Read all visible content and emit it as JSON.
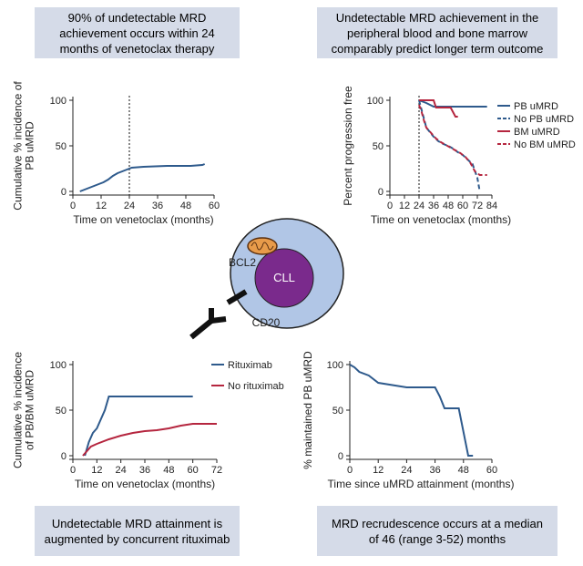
{
  "captions": {
    "top_left": "90% of undetectable MRD achievement occurs within 24 months of venetoclax therapy",
    "top_right": "Undetectable MRD achievement in the peripheral blood and bone marrow comparably predict longer term outcome",
    "bottom_left": "Undetectable MRD attainment is augmented by concurrent rituximab",
    "bottom_right": "MRD recrudescence occurs at a median of 46 (range 3-52) months"
  },
  "diagram": {
    "bcl2": "BCL2",
    "cll": "CLL",
    "cd20": "CD20"
  },
  "chart_data": [
    {
      "type": "line",
      "ylabel": [
        "Cumulative % incidence of",
        "PB uMRD"
      ],
      "xlabel": "Time on venetoclax (months)",
      "xlim": [
        0,
        60
      ],
      "xticks": [
        0,
        12,
        24,
        36,
        48,
        60
      ],
      "ylim": [
        0,
        100
      ],
      "yticks": [
        0,
        50,
        100
      ],
      "reference_x": 24,
      "series": [
        {
          "color": "#2e5a8c",
          "style": "solid",
          "x": [
            3,
            5,
            7,
            9,
            11,
            13,
            15,
            17,
            19,
            21,
            23,
            25,
            30,
            40,
            50,
            55,
            56
          ],
          "values": [
            0,
            2,
            4,
            6,
            8,
            10,
            13,
            17,
            20,
            22,
            24,
            26,
            27,
            28,
            28,
            29,
            30
          ]
        }
      ]
    },
    {
      "type": "line",
      "ylabel": [
        "Percent progression free"
      ],
      "xlabel": "Time on venetoclax (months)",
      "xlim": [
        0,
        84
      ],
      "xticks": [
        0,
        12,
        24,
        36,
        48,
        60,
        72,
        84
      ],
      "ylim": [
        0,
        100
      ],
      "yticks": [
        0,
        50,
        100
      ],
      "reference_x": 24,
      "series": [
        {
          "name": "PB uMRD",
          "color": "#2e5a8c",
          "style": "solid",
          "x": [
            24,
            30,
            36,
            72,
            80
          ],
          "values": [
            100,
            97,
            93,
            93,
            93
          ]
        },
        {
          "name": "No PB uMRD",
          "color": "#2e5a8c",
          "style": "dashed",
          "x": [
            24,
            26,
            28,
            30,
            33,
            36,
            40,
            44,
            48,
            52,
            56,
            60,
            64,
            68,
            72,
            74
          ],
          "values": [
            100,
            90,
            80,
            70,
            65,
            60,
            55,
            52,
            50,
            47,
            43,
            40,
            35,
            30,
            15,
            0
          ]
        },
        {
          "name": "BM uMRD",
          "color": "#b5263f",
          "style": "solid",
          "x": [
            24,
            36,
            38,
            50,
            54,
            56
          ],
          "values": [
            100,
            100,
            92,
            92,
            82,
            82
          ]
        },
        {
          "name": "No BM uMRD",
          "color": "#b5263f",
          "style": "dashed",
          "x": [
            24,
            26,
            28,
            30,
            34,
            38,
            42,
            46,
            50,
            54,
            58,
            62,
            66,
            70,
            74,
            76,
            80
          ],
          "values": [
            95,
            88,
            78,
            70,
            64,
            58,
            54,
            51,
            48,
            45,
            42,
            38,
            32,
            22,
            18,
            18,
            18
          ]
        }
      ]
    },
    {
      "type": "line",
      "ylabel": [
        "Cumulative % incidence",
        "of PB/BM uMRD"
      ],
      "xlabel": "Time on venetoclax (months)",
      "xlim": [
        0,
        72
      ],
      "xticks": [
        0,
        12,
        24,
        36,
        48,
        60,
        72
      ],
      "ylim": [
        0,
        100
      ],
      "yticks": [
        0,
        50,
        100
      ],
      "series": [
        {
          "name": "Rituximab",
          "color": "#2e5a8c",
          "style": "solid",
          "x": [
            6,
            8,
            10,
            12,
            14,
            16,
            18,
            60
          ],
          "values": [
            0,
            15,
            25,
            30,
            40,
            50,
            65,
            65
          ]
        },
        {
          "name": "No rituximab",
          "color": "#b5263f",
          "style": "solid",
          "x": [
            5,
            7,
            9,
            12,
            18,
            24,
            30,
            36,
            42,
            48,
            54,
            60,
            72
          ],
          "values": [
            0,
            5,
            10,
            13,
            18,
            22,
            25,
            27,
            28,
            30,
            33,
            35,
            35
          ]
        }
      ]
    },
    {
      "type": "line",
      "ylabel": [
        "% maintained PB uMRD"
      ],
      "xlabel": "Time since uMRD attainment (months)",
      "xlim": [
        0,
        60
      ],
      "xticks": [
        0,
        12,
        24,
        36,
        48,
        60
      ],
      "ylim": [
        0,
        100
      ],
      "yticks": [
        0,
        50,
        100
      ],
      "series": [
        {
          "color": "#2e5a8c",
          "style": "solid",
          "x": [
            0,
            2,
            4,
            8,
            12,
            24,
            36,
            38,
            40,
            46,
            50,
            52
          ],
          "values": [
            100,
            97,
            92,
            88,
            80,
            75,
            75,
            65,
            52,
            52,
            0,
            0
          ]
        }
      ]
    }
  ]
}
